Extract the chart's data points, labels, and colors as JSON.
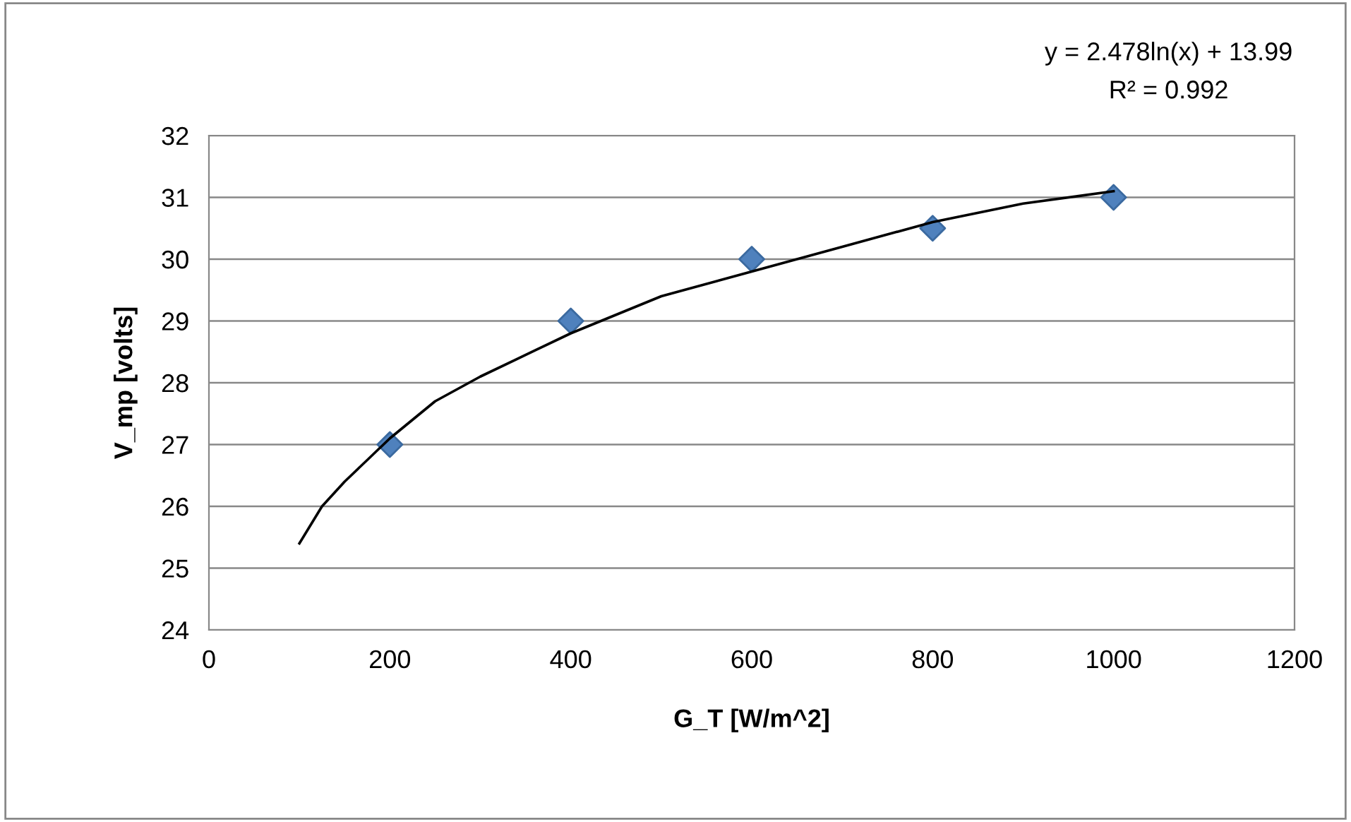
{
  "chart_data": {
    "type": "scatter",
    "xlabel": "G_T [W/m^2]",
    "ylabel": "V_mp [volts]",
    "annotations": [
      "y = 2.478ln(x) + 13.99",
      "R² = 0.992"
    ],
    "series": [
      {
        "color": "#4f81bd",
        "marker": "diamond",
        "x": [
          200,
          400,
          600,
          800,
          1000
        ],
        "values": [
          27,
          29,
          30,
          30.5,
          31
        ]
      },
      {
        "type": "line",
        "color": "#000000",
        "marker": "none",
        "line_style": "solid",
        "x": [
          100,
          125,
          150,
          200,
          250,
          300,
          400,
          500,
          600,
          700,
          800,
          900,
          1000
        ],
        "values": [
          25.4,
          26.0,
          26.4,
          27.1,
          27.7,
          28.1,
          28.8,
          29.4,
          29.8,
          30.2,
          30.6,
          30.9,
          31.1
        ]
      }
    ],
    "xlim": [
      0,
      1200
    ],
    "xticks": [
      0,
      200,
      400,
      600,
      800,
      1000,
      1200
    ],
    "ylim": [
      24,
      32
    ],
    "yticks": [
      24,
      25,
      26,
      27,
      28,
      29,
      30,
      31,
      32
    ],
    "grid": "y",
    "legend": false
  }
}
